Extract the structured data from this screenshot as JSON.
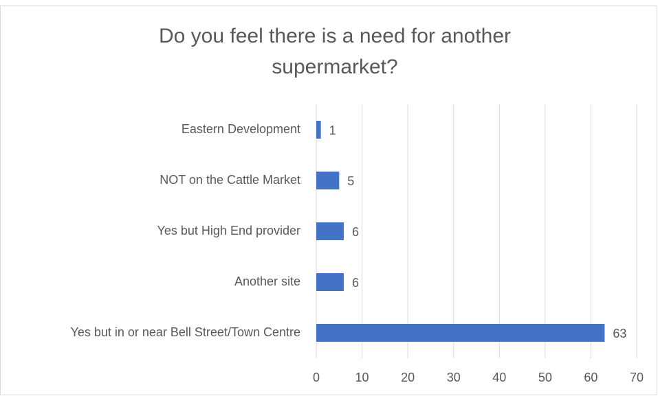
{
  "chart_data": {
    "type": "bar",
    "orientation": "horizontal",
    "title": "Do you feel there is a need for another supermarket?",
    "categories": [
      "Eastern Development",
      "NOT on the Cattle Market",
      "Yes but High End provider",
      "Another site",
      "Yes but in or near Bell Street/Town Centre"
    ],
    "values": [
      1,
      5,
      6,
      6,
      63
    ],
    "color": "#4472c4",
    "xlim": [
      0,
      70
    ],
    "xticks": [
      0,
      10,
      20,
      30,
      40,
      50,
      60,
      70
    ],
    "grid": true
  }
}
